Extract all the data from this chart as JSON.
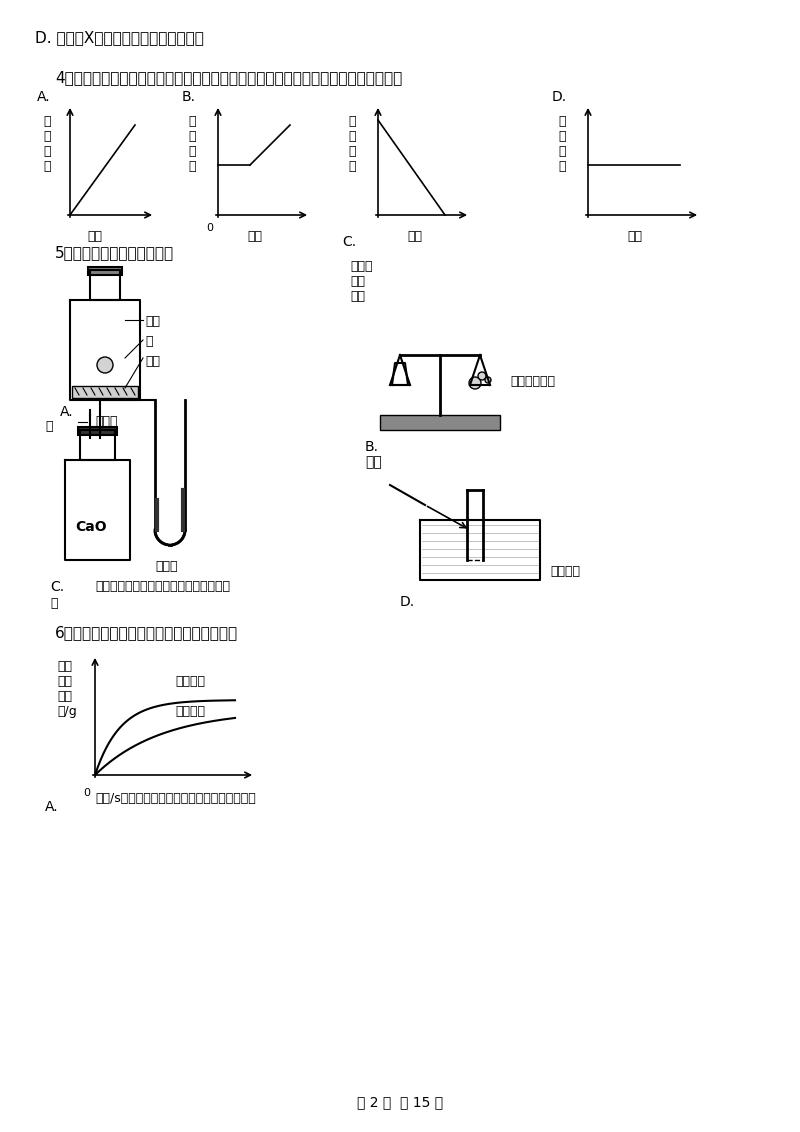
{
  "bg_color": "#ffffff",
  "text_color": "#000000",
  "page_width": 8.0,
  "page_height": 11.32,
  "line1": "D. 未知物X中一定含有碳氢氧三种元素",
  "q4": "4．红磷在密闭容器（含有空气）内燃烧，容器内有关的量随时间变化的图像正确的是",
  "q5": "5．下列实验设计不正确的是",
  "q6": "6．下列图像能正确反映对应的变化关系的是",
  "chart_A_ylabel": "原\n子\n种\n类",
  "chart_A_xlabel": "时间",
  "chart_B_ylabel": "物\n质\n质\n量",
  "chart_B_xlabel": "时间",
  "chart_C_ylabel": "原\n子\n个\n数",
  "chart_C_xlabel": "时间",
  "chart_D_ylabel": "元\n素\n种\n类",
  "chart_D_xlabel": "时间",
  "label_A": "A.",
  "label_B": "B.",
  "label_C": "C.",
  "label_D": "D.",
  "q5_A_labels": [
    "氧气",
    "硫",
    "细沙",
    "硫燃烧"
  ],
  "q5_B_labels": [
    "硫酸铜\n溶液",
    "铁钉",
    "验证质量守恒\n定律"
  ],
  "q5_C_labels": [
    "水",
    "CaO",
    "红墨水",
    "（装置气密性良好）验证化学反应能量变",
    "化"
  ],
  "q5_D_labels": [
    "收集氧气"
  ],
  "q6_A_ylabel": "生成\n氧气\n的质\n量/g",
  "q6_A_xlabel": "时间/s用等质量、等浓度的过氧化氢溶液制氧气",
  "q6_curve1": "有催化剂",
  "q6_curve2": "无催化剂",
  "footer": "第 2 页  共 15 页"
}
